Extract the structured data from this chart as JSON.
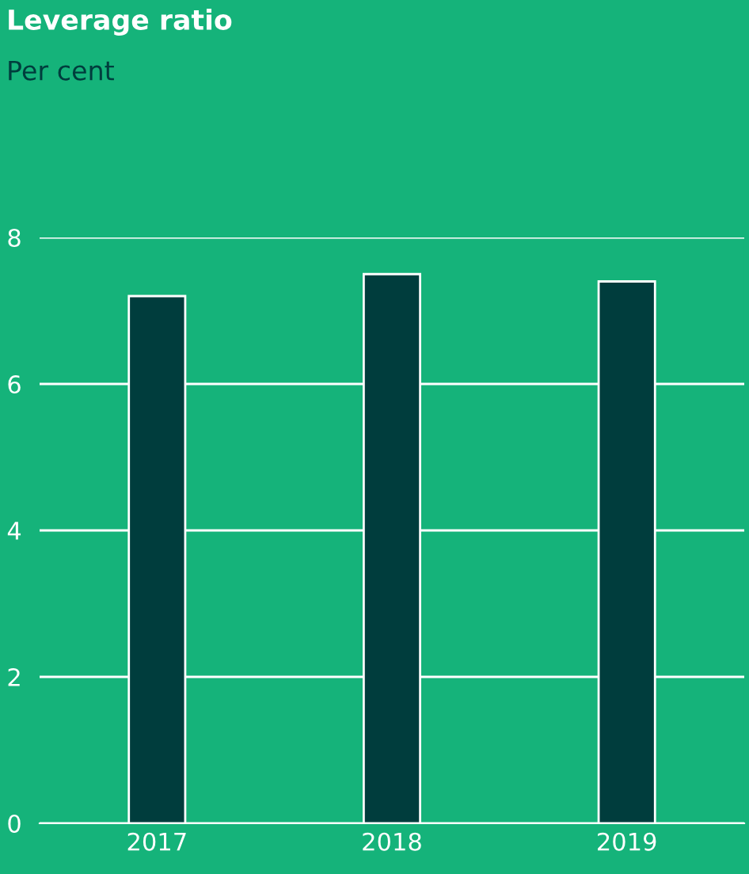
{
  "chart_data": {
    "type": "bar",
    "title": "Leverage ratio",
    "subtitle": "Per cent",
    "categories": [
      "2017",
      "2018",
      "2019"
    ],
    "values": [
      7.2,
      7.5,
      7.4
    ],
    "color": "#003d3d",
    "ylim": [
      0,
      8
    ],
    "yticks": [
      0,
      2,
      4,
      6,
      8
    ],
    "grid": "y"
  }
}
